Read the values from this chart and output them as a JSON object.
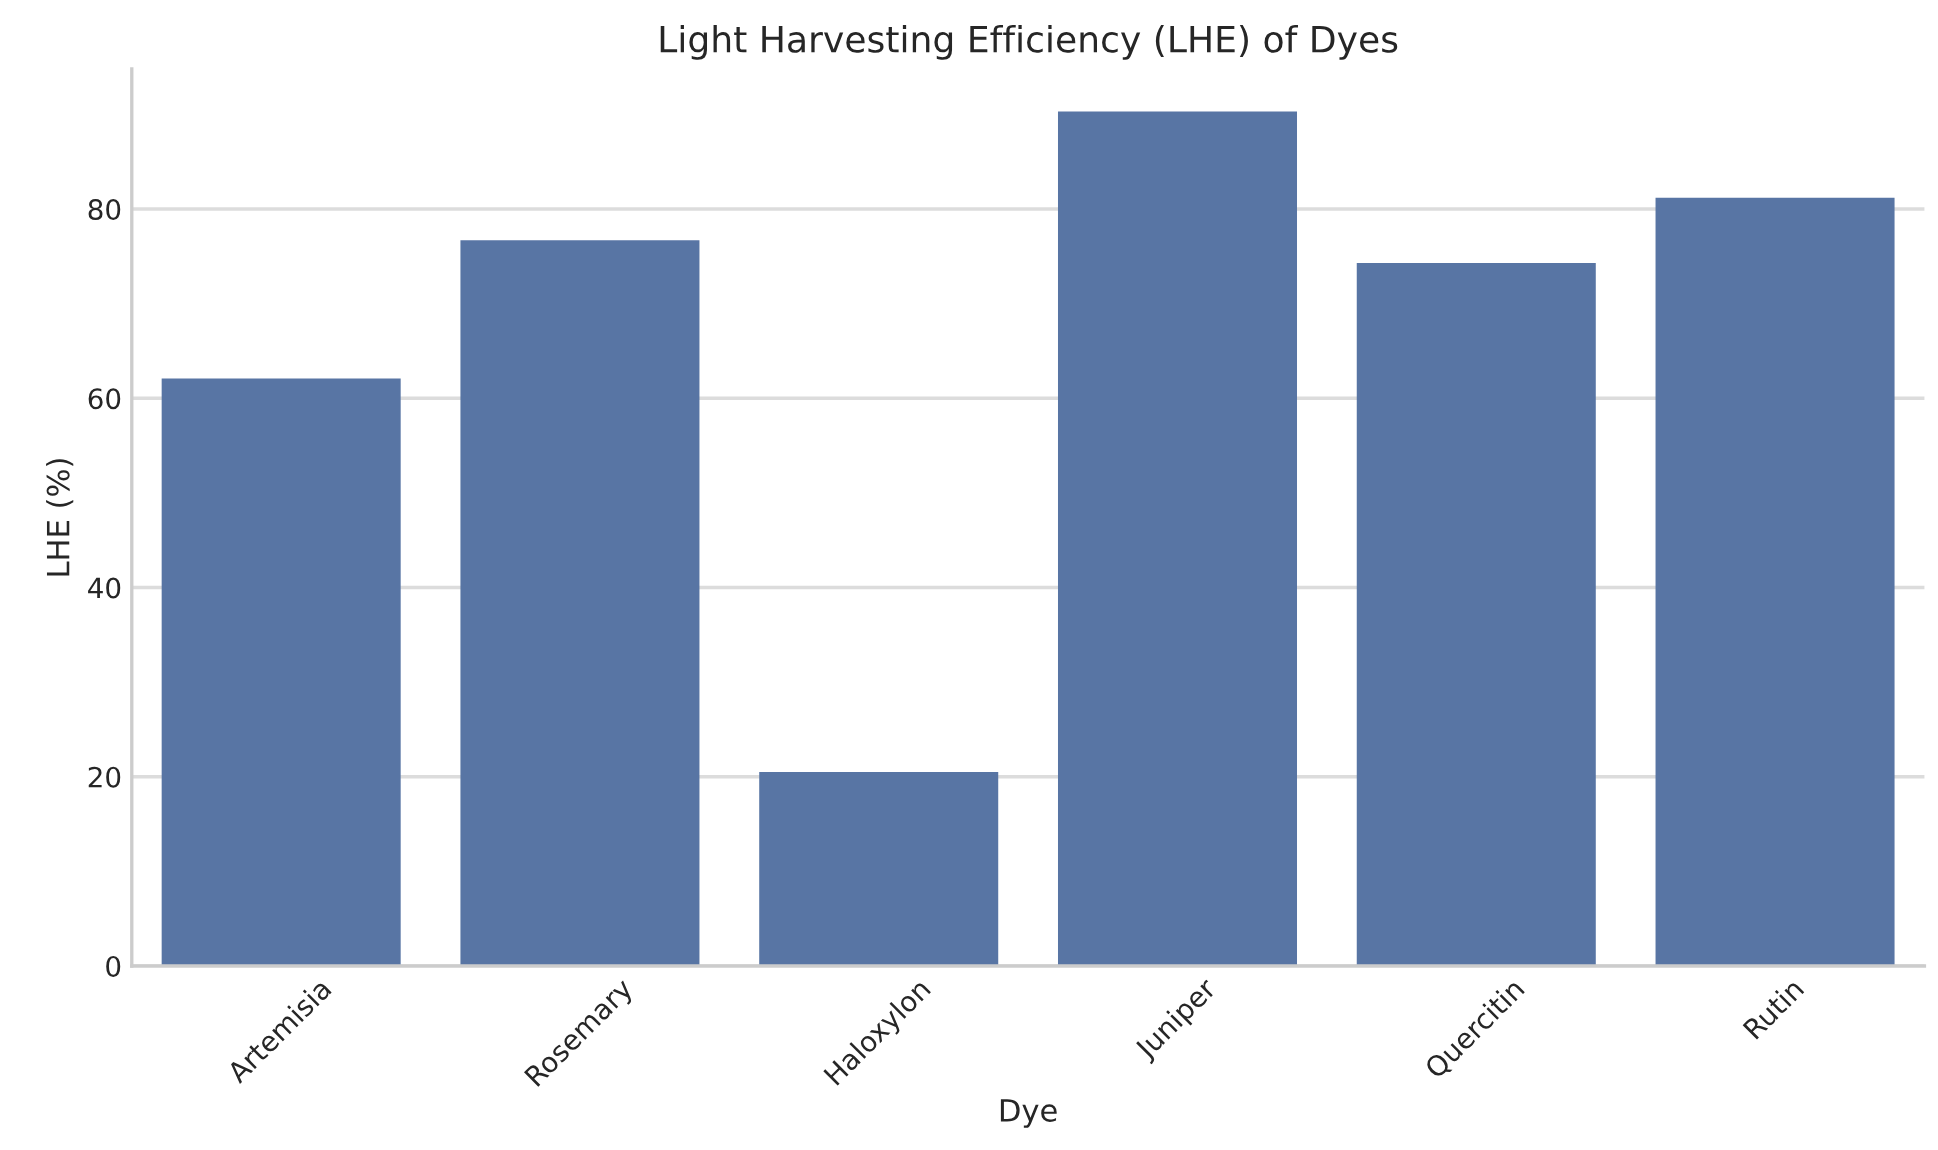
{
  "chart_data": {
    "type": "bar",
    "title": "Light Harvesting Efficiency (LHE) of Dyes",
    "xlabel": "Dye",
    "ylabel": "LHE (%)",
    "categories": [
      "Artemisia",
      "Rosemary",
      "Haloxylon",
      "Juniper",
      "Quercitin",
      "Rutin"
    ],
    "values": [
      62.1,
      76.7,
      20.5,
      90.3,
      74.3,
      81.2
    ],
    "color": "#5875a4",
    "ylim": [
      0,
      94.8
    ],
    "yticks": [
      0,
      20,
      40,
      60,
      80
    ],
    "grid": "y"
  }
}
